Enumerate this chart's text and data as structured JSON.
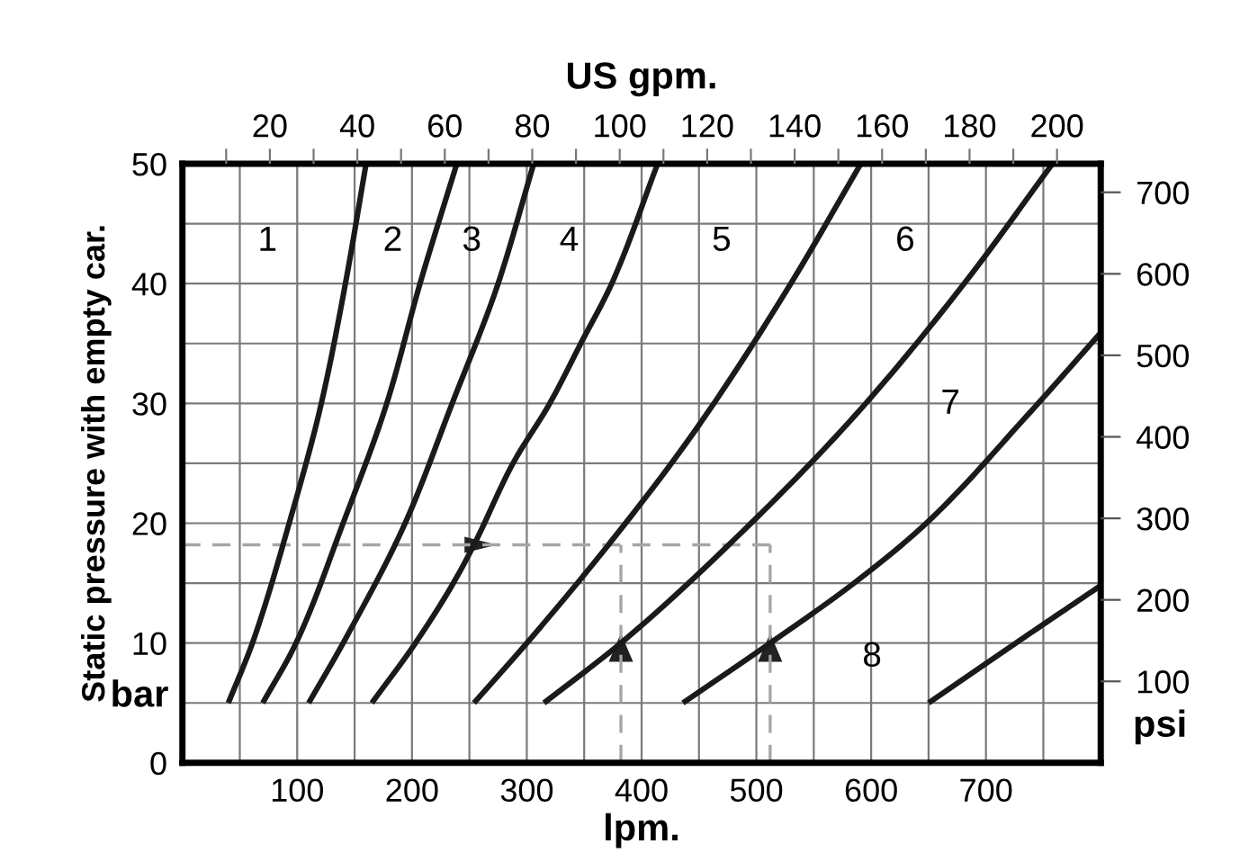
{
  "chart_data": {
    "type": "line",
    "xlabel": "lpm.",
    "ylabel": "Static pressure with empty car.",
    "x2label": "US gpm.",
    "y2label": "psi",
    "annotations": [
      "bar"
    ],
    "xlim": [
      0,
      800
    ],
    "ylim": [
      0,
      50
    ],
    "x2lim": [
      0,
      210
    ],
    "y2lim": [
      0,
      735
    ],
    "xticks": [
      {
        "value": 50,
        "label": null
      },
      100,
      {
        "value": 150,
        "label": null
      },
      200,
      {
        "value": 250,
        "label": null
      },
      300,
      {
        "value": 350,
        "label": null
      },
      400,
      {
        "value": 450,
        "label": null
      },
      500,
      {
        "value": 550,
        "label": null
      },
      600,
      {
        "value": 650,
        "label": null
      },
      700,
      {
        "value": 750,
        "label": null
      }
    ],
    "yticks": [
      0,
      {
        "value": 5,
        "label": null
      },
      10,
      {
        "value": 15,
        "label": null
      },
      20,
      {
        "value": 25,
        "label": null
      },
      30,
      {
        "value": 35,
        "label": null
      },
      40,
      {
        "value": 45,
        "label": null
      },
      50
    ],
    "x2ticks": [
      {
        "value": 10,
        "label": null
      },
      20,
      {
        "value": 30,
        "label": null
      },
      40,
      {
        "value": 50,
        "label": null
      },
      60,
      {
        "value": 70,
        "label": null
      },
      80,
      {
        "value": 90,
        "label": null
      },
      100,
      {
        "value": 110,
        "label": null
      },
      120,
      {
        "value": 130,
        "label": null
      },
      140,
      {
        "value": 150,
        "label": null
      },
      160,
      {
        "value": 170,
        "label": null
      },
      180,
      {
        "value": 190,
        "label": null
      },
      200
    ],
    "y2ticks": [
      100,
      200,
      300,
      400,
      500,
      600,
      700
    ],
    "grid": true,
    "line_style": "solid",
    "ref_lines": [
      {
        "axis": "y",
        "value": 18.2,
        "color": "#a6a6a6",
        "line_style": "dashed"
      },
      {
        "axis": "x",
        "value": 382,
        "color": "#a6a6a6",
        "line_style": "dashed"
      },
      {
        "axis": "x",
        "value": 512,
        "color": "#a6a6a6",
        "line_style": "dashed"
      }
    ],
    "series": [
      {
        "name": "1",
        "color": "#1a1a1a",
        "x": [
          40,
          61,
          93,
          121,
          142,
          160
        ],
        "values": [
          5,
          10,
          20,
          30,
          40,
          50
        ]
      },
      {
        "name": "2",
        "color": "#1a1a1a",
        "x": [
          70,
          99,
          140,
          178,
          207,
          239
        ],
        "values": [
          5,
          10,
          20,
          30,
          40,
          50
        ]
      },
      {
        "name": "3",
        "color": "#1a1a1a",
        "x": [
          110,
          140,
          194,
          235,
          275,
          306
        ],
        "values": [
          5,
          10,
          20,
          30,
          40,
          50
        ]
      },
      {
        "name": "4",
        "color": "#1a1a1a",
        "x": [
          165,
          203,
          236,
          254,
          288,
          320,
          347,
          374,
          414
        ],
        "values": [
          5,
          10,
          15,
          18.2,
          25,
          30,
          35,
          40,
          50
        ]
      },
      {
        "name": "5",
        "color": "#1a1a1a",
        "x": [
          254,
          300,
          344,
          386,
          426,
          463,
          530,
          591
        ],
        "values": [
          5,
          10,
          15,
          20,
          25,
          30,
          40,
          50
        ]
      },
      {
        "name": "6",
        "color": "#1a1a1a",
        "x": [
          315,
          382,
          476,
          586,
          681,
          758
        ],
        "values": [
          5,
          10,
          18.2,
          29,
          40,
          50
        ]
      },
      {
        "name": "7",
        "color": "#1a1a1a",
        "x": [
          436,
          512,
          585,
          648,
          736,
          800
        ],
        "values": [
          5,
          10,
          15,
          20,
          29,
          35.9
        ]
      },
      {
        "name": "8",
        "color": "#1a1a1a",
        "x": [
          650,
          726,
          800
        ],
        "values": [
          5,
          10,
          14.8
        ]
      }
    ]
  }
}
